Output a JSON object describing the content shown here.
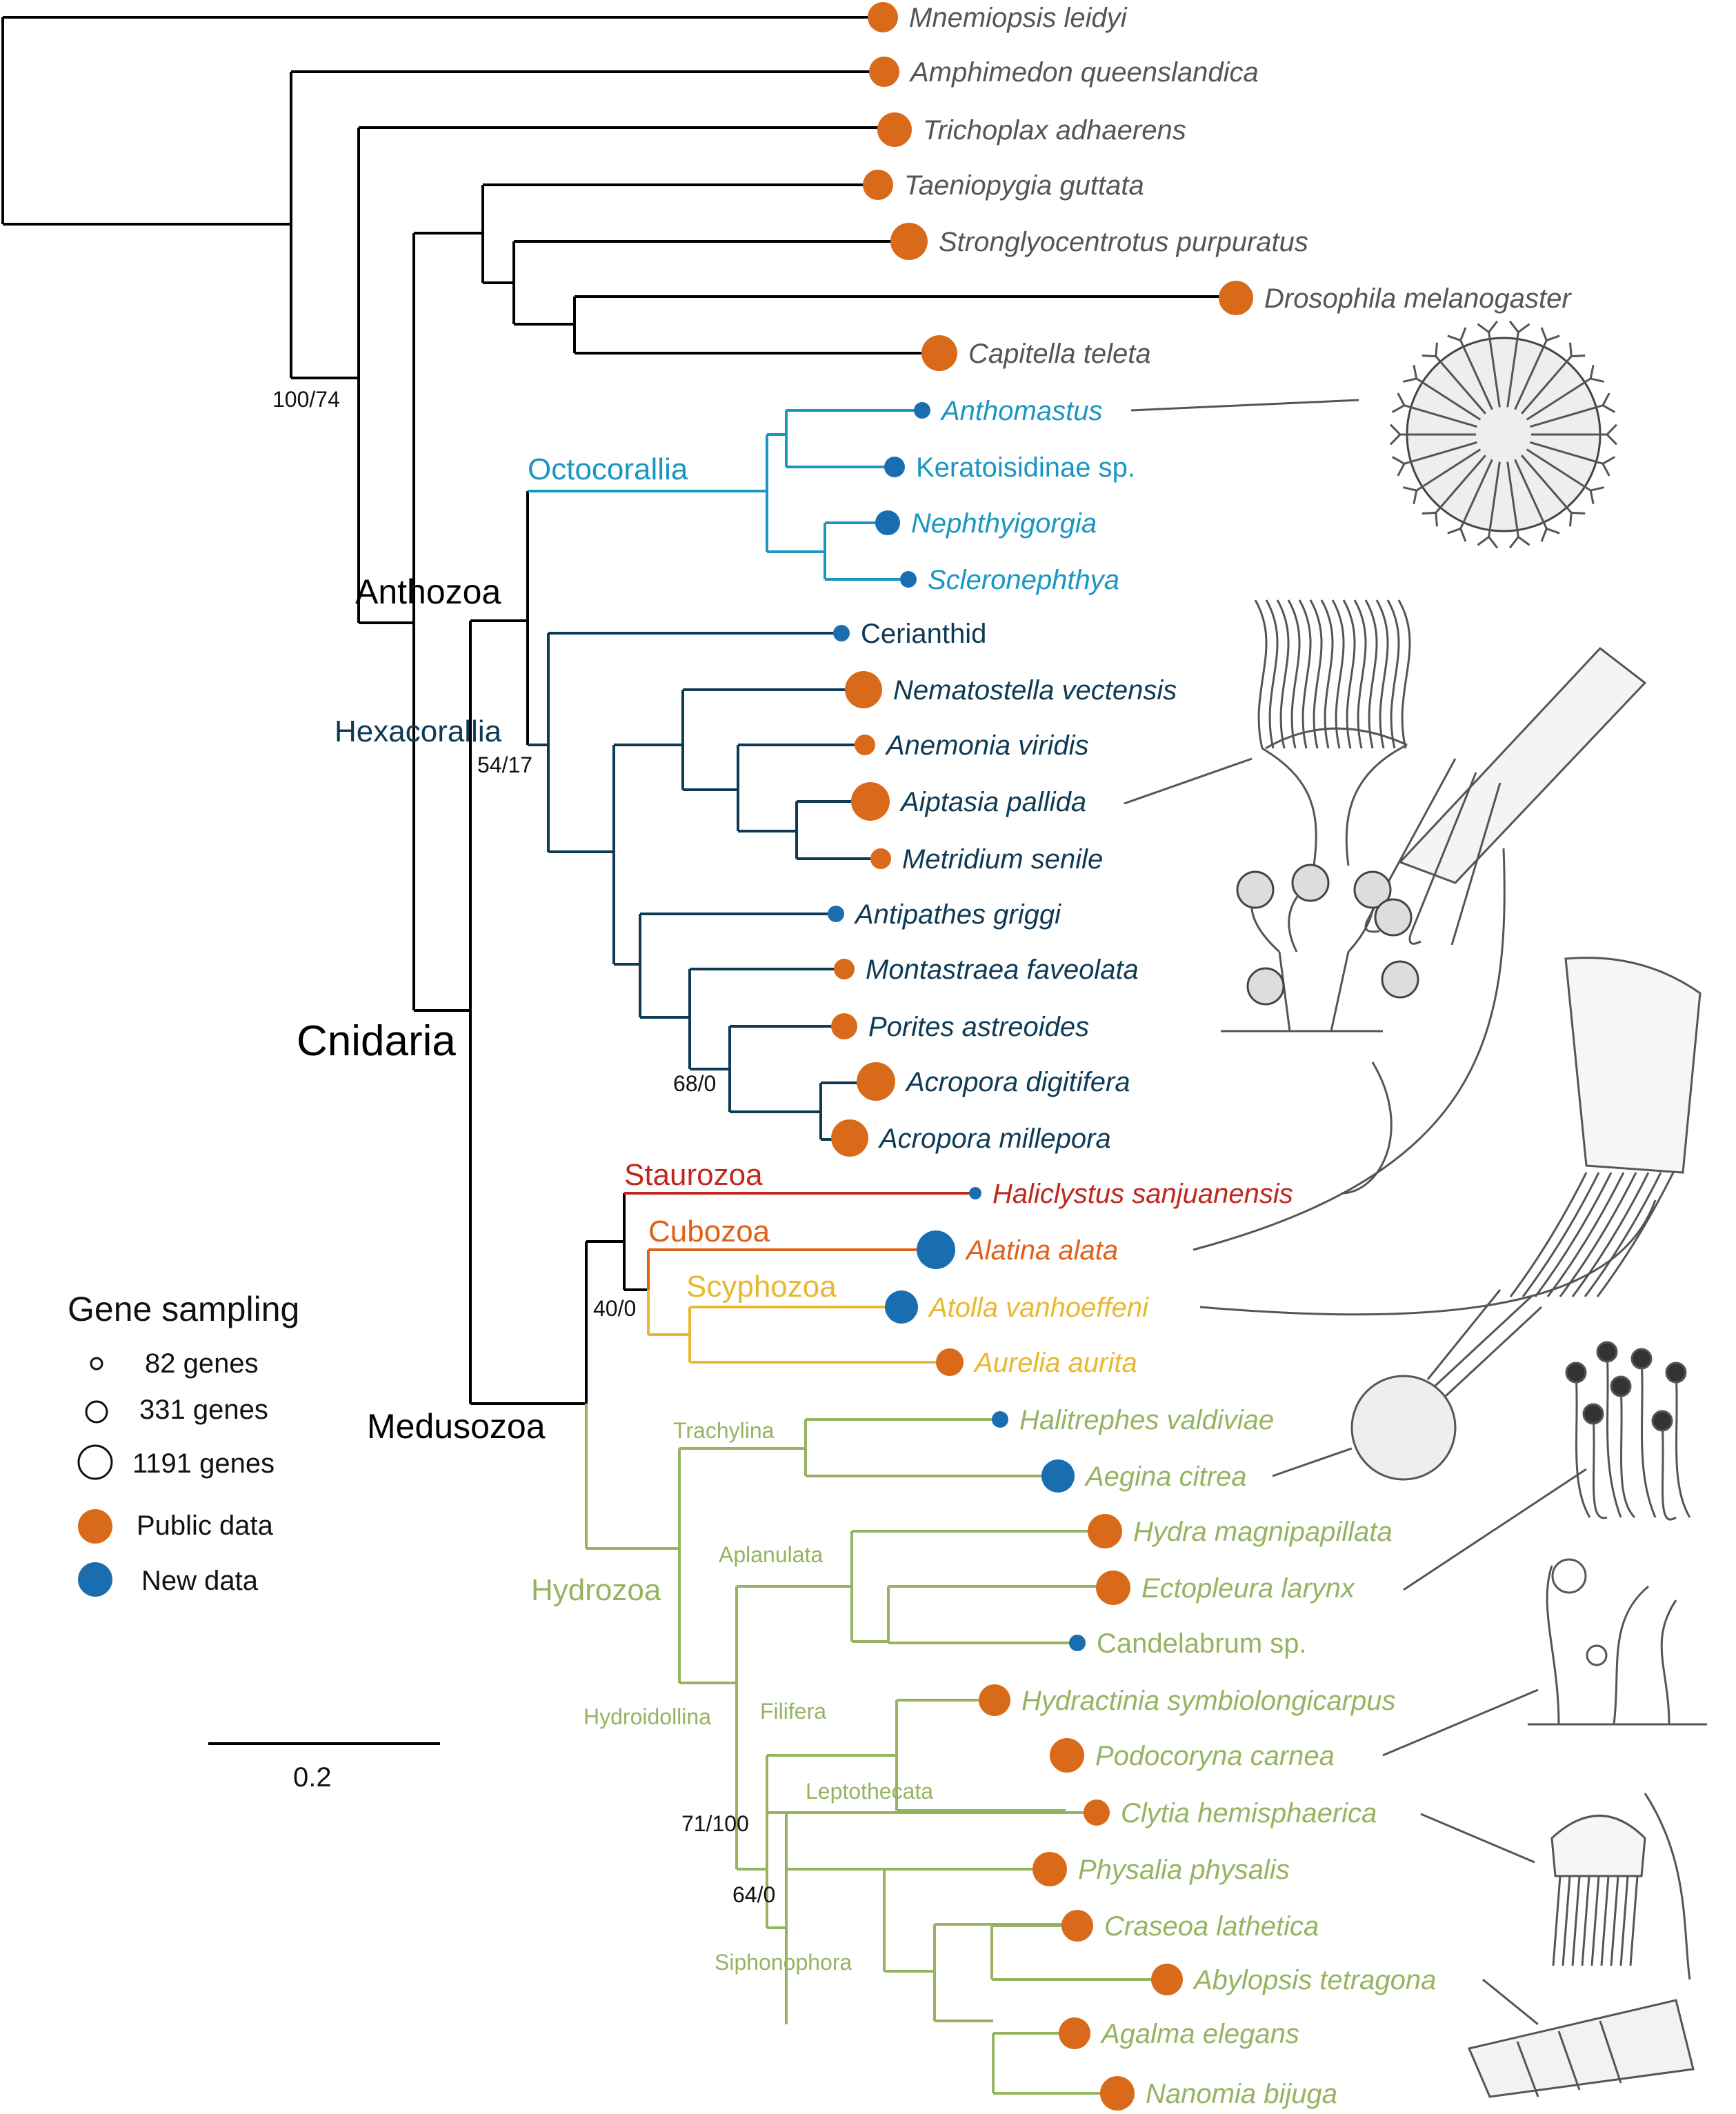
{
  "taxa": [
    {
      "id": "mnemiopsis",
      "label": "Mnemiopsis leidyi",
      "color": "#555555",
      "dot": "#d96a1a",
      "italic": true
    },
    {
      "id": "amphimedon",
      "label": "Amphimedon queenslandica",
      "color": "#555555",
      "dot": "#d96a1a",
      "italic": true
    },
    {
      "id": "trichoplax",
      "label": "Trichoplax adhaerens",
      "color": "#555555",
      "dot": "#d96a1a",
      "italic": true
    },
    {
      "id": "taeniopygia",
      "label": "Taeniopygia guttata",
      "color": "#555555",
      "dot": "#d96a1a",
      "italic": true
    },
    {
      "id": "strongylocentrotus",
      "label": "Stronglyocentrotus purpuratus",
      "color": "#555555",
      "dot": "#d96a1a",
      "italic": true
    },
    {
      "id": "drosophila",
      "label": "Drosophila melanogaster",
      "color": "#555555",
      "dot": "#d96a1a",
      "italic": true
    },
    {
      "id": "capitella",
      "label": "Capitella teleta",
      "color": "#555555",
      "dot": "#d96a1a",
      "italic": true
    },
    {
      "id": "anthomastus",
      "label": "Anthomastus",
      "color": "#1a96c2",
      "dot": "#1a6eb0",
      "italic": true
    },
    {
      "id": "keratoisidinae",
      "label": "Keratoisidinae sp.",
      "color": "#1a96c2",
      "dot": "#1a6eb0",
      "italic": false
    },
    {
      "id": "nephthyigorgia",
      "label": "Nephthyigorgia",
      "color": "#1a96c2",
      "dot": "#1a6eb0",
      "italic": true
    },
    {
      "id": "scleronephthya",
      "label": "Scleronephthya",
      "color": "#1a96c2",
      "dot": "#1a6eb0",
      "italic": true
    },
    {
      "id": "cerianthid",
      "label": "Cerianthid",
      "color": "#0e3a55",
      "dot": "#1a6eb0",
      "italic": false
    },
    {
      "id": "nematostella",
      "label": "Nematostella vectensis",
      "color": "#0e3a55",
      "dot": "#d96a1a",
      "italic": true
    },
    {
      "id": "anemonia",
      "label": "Anemonia viridis",
      "color": "#0e3a55",
      "dot": "#d96a1a",
      "italic": true
    },
    {
      "id": "aiptasia",
      "label": "Aiptasia pallida",
      "color": "#0e3a55",
      "dot": "#d96a1a",
      "italic": true
    },
    {
      "id": "metridium",
      "label": "Metridium senile",
      "color": "#0e3a55",
      "dot": "#d96a1a",
      "italic": true
    },
    {
      "id": "antipathes",
      "label": "Antipathes griggi",
      "color": "#0e3a55",
      "dot": "#1a6eb0",
      "italic": true
    },
    {
      "id": "montastraea",
      "label": "Montastraea faveolata",
      "color": "#0e3a55",
      "dot": "#d96a1a",
      "italic": true
    },
    {
      "id": "porites",
      "label": "Porites astreoides",
      "color": "#0e3a55",
      "dot": "#d96a1a",
      "italic": true
    },
    {
      "id": "acropora_d",
      "label": "Acropora digitifera",
      "color": "#0e3a55",
      "dot": "#d96a1a",
      "italic": true
    },
    {
      "id": "acropora_m",
      "label": "Acropora millepora",
      "color": "#0e3a55",
      "dot": "#d96a1a",
      "italic": true
    },
    {
      "id": "haliclystus",
      "label": "Haliclystus sanjuanensis",
      "color": "#c0281e",
      "dot": "#1a6eb0",
      "italic": true
    },
    {
      "id": "alatina",
      "label": "Alatina alata",
      "color": "#e06018",
      "dot": "#1a6eb0",
      "italic": true
    },
    {
      "id": "atolla",
      "label": "Atolla vanhoeffeni",
      "color": "#e8b830",
      "dot": "#1a6eb0",
      "italic": true
    },
    {
      "id": "aurelia",
      "label": "Aurelia aurita",
      "color": "#e8b830",
      "dot": "#d96a1a",
      "italic": true
    },
    {
      "id": "halitrephes",
      "label": "Halitrephes valdiviae",
      "color": "#95b360",
      "dot": "#1a6eb0",
      "italic": true
    },
    {
      "id": "aegina",
      "label": "Aegina citrea",
      "color": "#95b360",
      "dot": "#1a6eb0",
      "italic": true
    },
    {
      "id": "hydra",
      "label": "Hydra magnipapillata",
      "color": "#95b360",
      "dot": "#d96a1a",
      "italic": true
    },
    {
      "id": "ectopleura",
      "label": "Ectopleura larynx",
      "color": "#95b360",
      "dot": "#d96a1a",
      "italic": true
    },
    {
      "id": "candelabrum",
      "label": "Candelabrum sp.",
      "color": "#95b360",
      "dot": "#1a6eb0",
      "italic": false
    },
    {
      "id": "hydractinia",
      "label": "Hydractinia symbiolongicarpus",
      "color": "#95b360",
      "dot": "#d96a1a",
      "italic": true
    },
    {
      "id": "podocoryna",
      "label": "Podocoryna carnea",
      "color": "#95b360",
      "dot": "#d96a1a",
      "italic": true
    },
    {
      "id": "clytia",
      "label": "Clytia hemisphaerica",
      "color": "#95b360",
      "dot": "#d96a1a",
      "italic": true
    },
    {
      "id": "physalia",
      "label": "Physalia physalis",
      "color": "#95b360",
      "dot": "#d96a1a",
      "italic": true
    },
    {
      "id": "craseoa",
      "label": "Craseoa lathetica",
      "color": "#95b360",
      "dot": "#d96a1a",
      "italic": true
    },
    {
      "id": "abylopsis",
      "label": "Abylopsis tetragona",
      "color": "#95b360",
      "dot": "#d96a1a",
      "italic": true
    },
    {
      "id": "agalma",
      "label": "Agalma elegans",
      "color": "#95b360",
      "dot": "#d96a1a",
      "italic": true
    },
    {
      "id": "nanomia",
      "label": "Nanomia bijuga",
      "color": "#95b360",
      "dot": "#d96a1a",
      "italic": true
    }
  ],
  "clades": {
    "octocorallia": "Octocorallia",
    "anthozoa": "Anthozoa",
    "hexacorallia": "Hexacorallia",
    "cnidaria": "Cnidaria",
    "staurozoa": "Staurozoa",
    "cubozoa": "Cubozoa",
    "scyphozoa": "Scyphozoa",
    "medusozoa": "Medusozoa",
    "trachylina": "Trachylina",
    "hydrozoa": "Hydrozoa",
    "aplanulata": "Aplanulata",
    "hydroidollina": "Hydroidollina",
    "filifera": "Filifera",
    "leptothecata": "Leptothecata",
    "siphonophora": "Siphonophora"
  },
  "support_values": {
    "s1": "100/74",
    "s2": "54/17",
    "s3": "68/0",
    "s4": "40/0",
    "s5": "71/100",
    "s6": "64/0"
  },
  "legend": {
    "title": "Gene sampling",
    "sizes": [
      "82 genes",
      "331 genes",
      "1191 genes"
    ],
    "public": "Public data",
    "new": "New data",
    "public_color": "#d96a1a",
    "new_color": "#1a6eb0"
  },
  "scale_bar": {
    "label": "0.2"
  },
  "colors": {
    "outgroup": "#000000",
    "octocorallia": "#1a96c2",
    "hexacorallia": "#0e3a55",
    "staurozoa": "#c0281e",
    "cubozoa": "#e06018",
    "scyphozoa": "#e8b830",
    "hydrozoa": "#95b360"
  }
}
